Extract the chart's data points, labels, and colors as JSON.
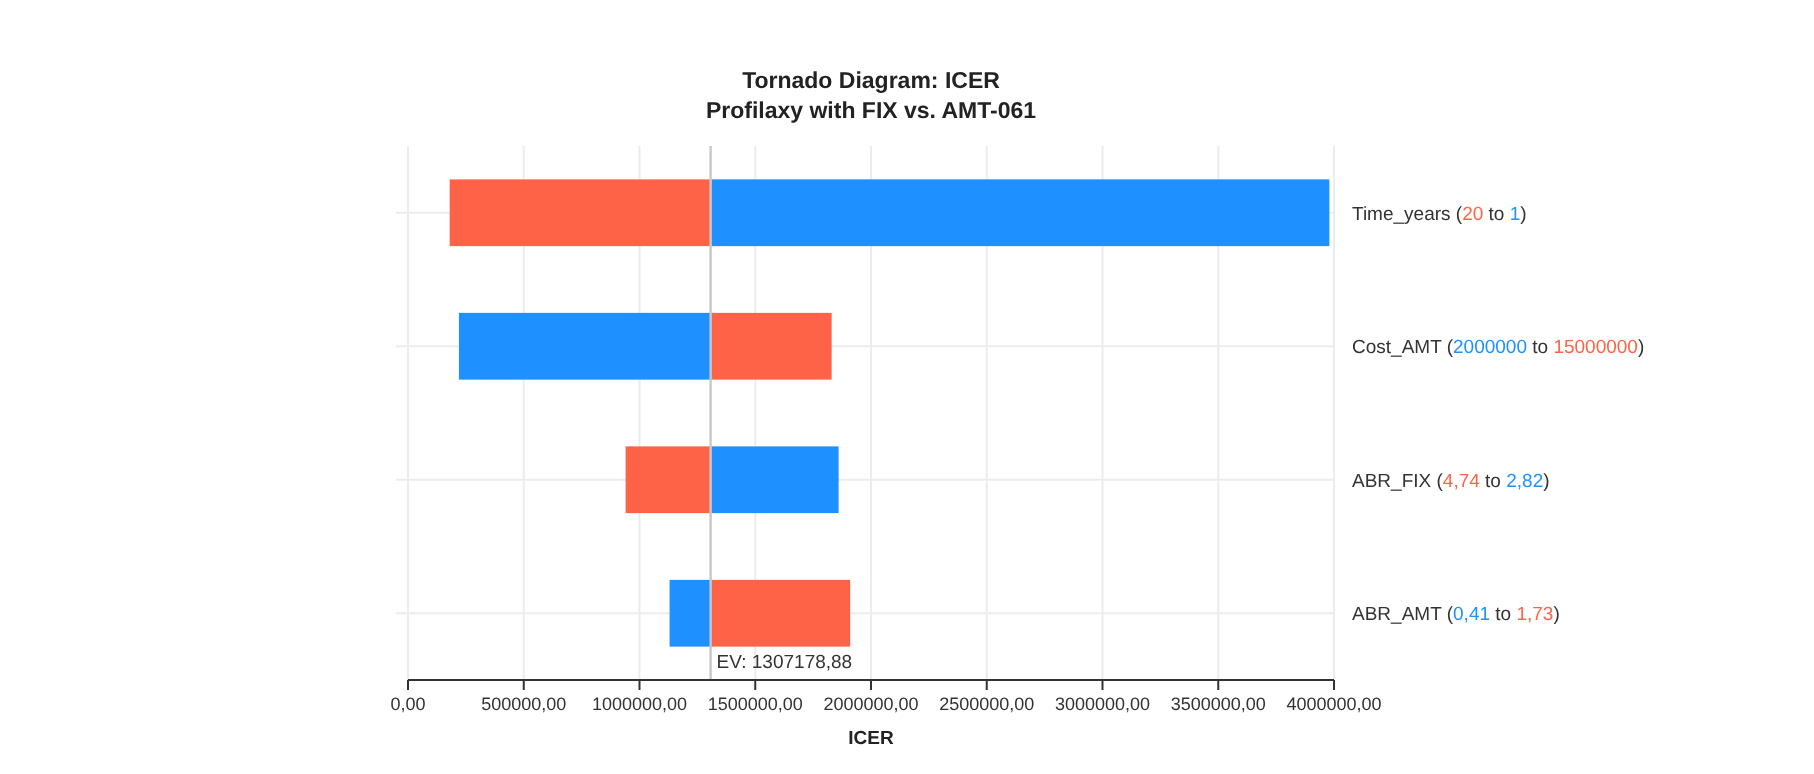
{
  "chart_data": {
    "type": "bar",
    "orientation": "horizontal",
    "title": "Tornado Diagram: ICER",
    "subtitle": "Profilaxy with FIX vs. AMT-061",
    "xlabel": "ICER",
    "categories": [
      "Time_years (20 to 1)",
      "Cost_AMT (2000000 to 15000000)",
      "ABR_FIX (4,74 to 2,82)",
      "ABR_AMT (0,41 to 1,73)"
    ],
    "series": [
      {
        "color": "#ff6347",
        "base": [
          180000,
          1310000,
          940000,
          1310000
        ],
        "values": [
          1130000,
          520000,
          370000,
          600000
        ]
      },
      {
        "color": "#1e90ff",
        "base": [
          1310000,
          220000,
          1310000,
          1130000
        ],
        "values": [
          2670000,
          1090000,
          550000,
          180000
        ]
      }
    ],
    "xlim": [
      0,
      4000000
    ],
    "xticks": [
      {
        "value": 0,
        "label": "0,00"
      },
      {
        "value": 500000,
        "label": "500000,00"
      },
      {
        "value": 1000000,
        "label": "1000000,00"
      },
      {
        "value": 1500000,
        "label": "1500000,00"
      },
      {
        "value": 2000000,
        "label": "2000000,00"
      },
      {
        "value": 2500000,
        "label": "2500000,00"
      },
      {
        "value": 3000000,
        "label": "3000000,00"
      },
      {
        "value": 3500000,
        "label": "3500000,00"
      },
      {
        "value": 4000000,
        "label": "4000000,00"
      }
    ],
    "ref_lines": [
      {
        "axis": "x",
        "value": 1307178.88,
        "label": "EV: 1307178,88",
        "color": "#c8c8c8"
      }
    ],
    "grid": true
  }
}
